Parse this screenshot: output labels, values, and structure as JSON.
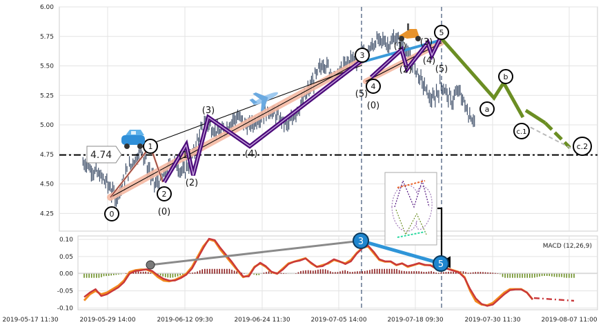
{
  "chart_data": [
    {
      "type": "line",
      "title": "",
      "xlabel": "",
      "ylabel": "",
      "x_tick_labels": [
        "2019-05-17 11:30",
        "2019-05-29 14:00",
        "2019-06-12 09:30",
        "2019-06-24 11:30",
        "2019-07-05 14:00",
        "2019-07-18 09:30",
        "2019-07-30 11:30",
        "2019-08-07 11:00"
      ],
      "y_tick_labels": [
        "4.25",
        "4.50",
        "4.75",
        "5.00",
        "5.25",
        "5.50",
        "5.75",
        "6.00"
      ],
      "ylim": [
        4.1,
        6.0
      ],
      "grid": true,
      "price_label": "4.74",
      "price_level": 4.745,
      "series": [
        {
          "values": [
            4.68,
            4.66,
            4.62,
            4.6,
            4.58,
            4.55,
            4.52,
            4.48,
            4.42,
            4.38,
            4.45,
            4.52,
            4.6,
            4.65,
            4.7,
            4.74,
            4.78,
            4.72,
            4.62,
            4.55,
            4.5,
            4.52,
            4.55,
            4.6,
            4.66,
            4.68,
            4.65,
            4.62,
            4.6,
            4.66,
            4.72,
            4.8,
            4.88,
            4.96,
            5.02,
            5.0,
            4.97,
            4.95,
            4.93,
            4.95,
            4.98,
            5.02,
            5.05,
            5.07,
            5.04,
            5.01,
            4.99,
            5.0,
            5.03,
            5.06,
            5.09,
            5.1,
            5.12,
            5.1,
            5.08,
            5.05,
            5.02,
            5.0,
            5.04,
            5.09,
            5.14,
            5.19,
            5.24,
            5.3,
            5.36,
            5.42,
            5.48,
            5.52,
            5.5,
            5.45,
            5.4,
            5.42,
            5.46,
            5.5,
            5.54,
            5.56,
            5.55,
            5.58,
            5.62,
            5.6,
            5.64,
            5.68,
            5.72,
            5.7,
            5.72,
            5.68,
            5.7,
            5.74,
            5.72,
            5.68,
            5.63,
            5.58,
            5.52,
            5.46,
            5.4,
            5.34,
            5.28,
            5.22,
            5.22,
            5.28,
            5.34,
            5.3,
            5.24,
            5.2,
            5.26,
            5.28,
            5.22,
            5.14,
            5.08,
            5.05
          ]
        }
      ],
      "wave_labels": [
        "0",
        "(0)",
        "1",
        "2",
        "(1)",
        "(2)",
        "(3)",
        "(4)",
        "3",
        "(5)",
        "4",
        "(0)",
        "(1)",
        "(2)",
        "(3)",
        "(4)",
        "5",
        "(5)",
        "a",
        "b",
        "c.1",
        "c.2"
      ]
    },
    {
      "type": "line",
      "title": "MACD (12,26,9)",
      "y_tick_labels": [
        "0.10",
        "0.05",
        "0.00",
        "-0.05",
        "-0.10"
      ],
      "ylim": [
        -0.105,
        0.11
      ],
      "series": [
        {
          "values": [
            -0.078,
            -0.06,
            -0.05,
            -0.06,
            -0.055,
            -0.045,
            -0.035,
            -0.02,
            0.005,
            0.01,
            0.012,
            0.012,
            0.005,
            -0.01,
            -0.02,
            -0.022,
            -0.018,
            -0.01,
            0.0,
            0.02,
            0.05,
            0.08,
            0.1,
            0.095,
            0.07,
            0.05,
            0.03,
            0.01,
            -0.01,
            -0.005,
            0.02,
            0.03,
            0.02,
            0.005,
            0.0,
            0.015,
            0.03,
            0.035,
            0.04,
            0.045,
            0.03,
            0.02,
            0.025,
            0.03,
            0.04,
            0.035,
            0.03,
            0.04,
            0.06,
            0.075,
            0.08,
            0.06,
            0.04,
            0.035,
            0.035,
            0.025,
            0.03,
            0.02,
            0.025,
            0.03,
            0.025,
            0.025,
            0.015,
            0.02,
            0.015,
            0.01,
            0.005,
            -0.01,
            -0.05,
            -0.08,
            -0.09,
            -0.092,
            -0.085,
            -0.07,
            -0.055,
            -0.045,
            -0.045,
            -0.045,
            -0.055,
            -0.075
          ]
        },
        {
          "values": [
            -0.068,
            -0.055,
            -0.045,
            -0.065,
            -0.06,
            -0.05,
            -0.04,
            -0.025,
            0.0,
            0.008,
            0.01,
            0.013,
            0.008,
            -0.005,
            -0.015,
            -0.02,
            -0.02,
            -0.013,
            -0.003,
            0.015,
            0.045,
            0.075,
            0.102,
            0.098,
            0.075,
            0.055,
            0.035,
            0.012,
            -0.008,
            -0.008,
            0.018,
            0.032,
            0.022,
            0.006,
            0.0,
            0.012,
            0.028,
            0.035,
            0.038,
            0.044,
            0.032,
            0.02,
            0.022,
            0.032,
            0.042,
            0.036,
            0.028,
            0.036,
            0.058,
            0.074,
            0.082,
            0.064,
            0.042,
            0.036,
            0.036,
            0.026,
            0.03,
            0.022,
            0.026,
            0.031,
            0.026,
            0.024,
            0.016,
            0.02,
            0.014,
            0.009,
            0.004,
            -0.012,
            -0.045,
            -0.072,
            -0.088,
            -0.094,
            -0.09,
            -0.075,
            -0.06,
            -0.048,
            -0.046,
            -0.046,
            -0.055,
            -0.075
          ]
        }
      ]
    }
  ]
}
